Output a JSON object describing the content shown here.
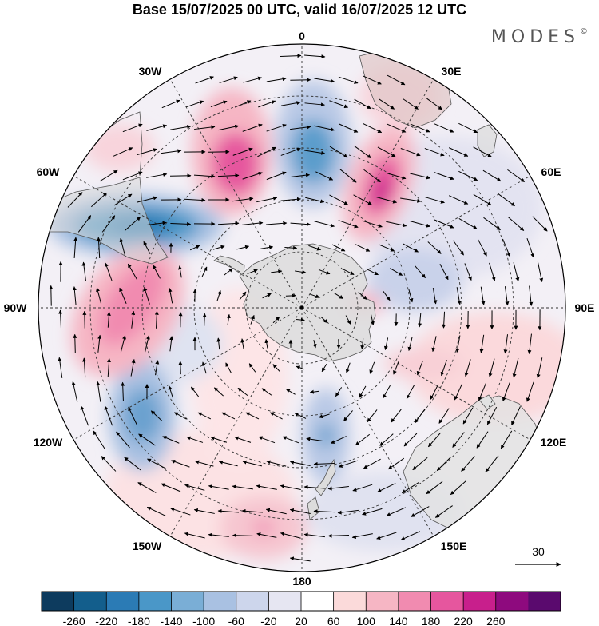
{
  "title": "Base 15/07/2025 00 UTC, valid 16/07/2025 12 UTC",
  "brand": "MODES",
  "brand_mark": "©",
  "longitude_labels": [
    {
      "key": "0",
      "text": "0"
    },
    {
      "key": "30E",
      "text": "30E"
    },
    {
      "key": "60E",
      "text": "60E"
    },
    {
      "key": "90E",
      "text": "90E"
    },
    {
      "key": "120E",
      "text": "120E"
    },
    {
      "key": "150E",
      "text": "150E"
    },
    {
      "key": "180",
      "text": "180"
    },
    {
      "key": "150W",
      "text": "150W"
    },
    {
      "key": "120W",
      "text": "120W"
    },
    {
      "key": "90W",
      "text": "90W"
    },
    {
      "key": "60W",
      "text": "60W"
    },
    {
      "key": "30W",
      "text": "30W"
    }
  ],
  "reference_vector": {
    "label": "30"
  },
  "colorbar": {
    "tick_labels": [
      "-260",
      "-220",
      "-180",
      "-140",
      "-100",
      "-60",
      "-20",
      "20",
      "60",
      "100",
      "140",
      "180",
      "220",
      "260"
    ],
    "colors": [
      "#0d3b5e",
      "#135e8c",
      "#2b7bb5",
      "#4a97c8",
      "#7aaed6",
      "#a9c1e2",
      "#cdd6ec",
      "#e6e6f2",
      "#ffffff",
      "#fbdada",
      "#f6b6c4",
      "#f18bb0",
      "#e6569e",
      "#c81f8c",
      "#8e0a7e",
      "#5a0a6e"
    ],
    "colors_note_removed": true
  },
  "anomaly_features": [
    {
      "sign": "negative",
      "value": -180
    },
    {
      "sign": "negative",
      "value": -140
    },
    {
      "sign": "negative",
      "value": -140
    },
    {
      "sign": "negative",
      "value": -100
    },
    {
      "sign": "positive",
      "value": 180
    },
    {
      "sign": "positive",
      "value": 200
    },
    {
      "sign": "positive",
      "value": 140
    },
    {
      "sign": "positive",
      "value": 100
    },
    {
      "sign": "positive",
      "value": 60
    }
  ]
}
